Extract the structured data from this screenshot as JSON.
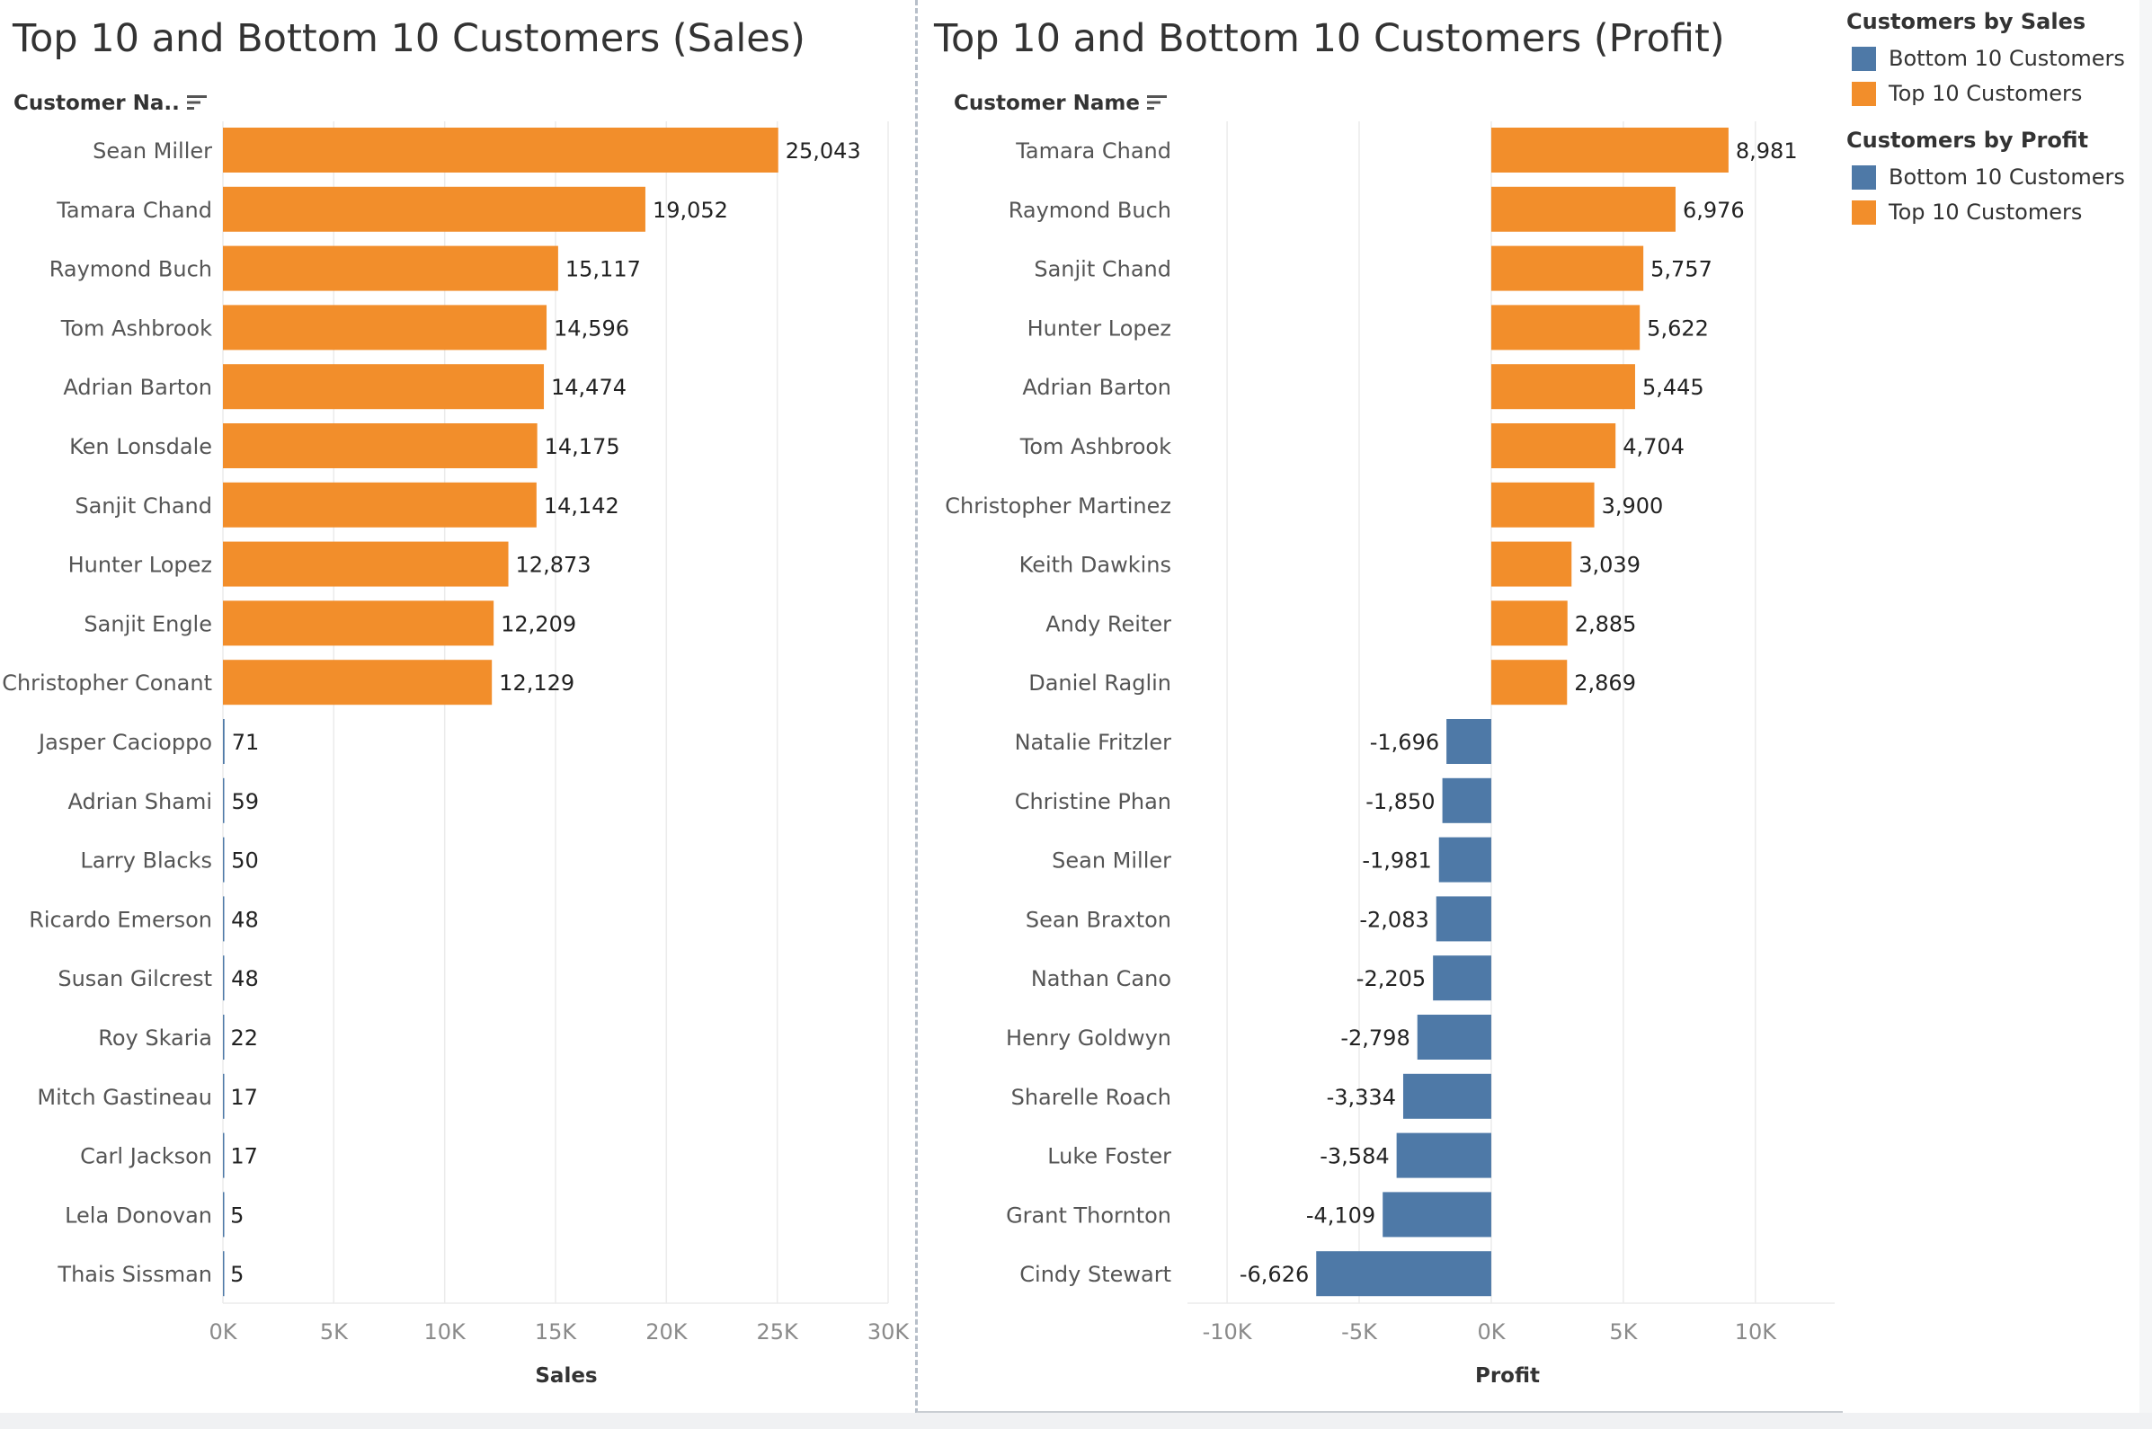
{
  "colors": {
    "orange": "#F28E2B",
    "blue": "#4E79A7",
    "grid": "#ebebeb",
    "axis": "#8a8a8a",
    "label": "#555555"
  },
  "sales_sheet": {
    "title": "Top 10 and Bottom 10 Customers (Sales)",
    "row_header": "Customer Na.."
  },
  "profit_sheet": {
    "title": "Top 10 and Bottom 10 Customers (Profit)",
    "row_header": "Customer Name"
  },
  "legend": {
    "groups": [
      {
        "title": "Customers by Sales",
        "items": [
          {
            "label": "Bottom 10 Customers",
            "color": "#4E79A7"
          },
          {
            "label": "Top 10 Customers",
            "color": "#F28E2B"
          }
        ]
      },
      {
        "title": "Customers by Profit",
        "items": [
          {
            "label": "Bottom 10 Customers",
            "color": "#4E79A7"
          },
          {
            "label": "Top 10 Customers",
            "color": "#F28E2B"
          }
        ]
      }
    ]
  },
  "chart_data": [
    {
      "type": "bar",
      "orientation": "horizontal",
      "title": "Top 10 and Bottom 10 Customers (Sales)",
      "xlabel": "Sales",
      "ylabel": "Customer Na..",
      "xlim": [
        0,
        30000
      ],
      "ticks": [
        0,
        5000,
        10000,
        15000,
        20000,
        25000,
        30000
      ],
      "tick_labels": [
        "0K",
        "5K",
        "10K",
        "15K",
        "20K",
        "25K",
        "30K"
      ],
      "grid": true,
      "categories": [
        "Sean Miller",
        "Tamara Chand",
        "Raymond Buch",
        "Tom Ashbrook",
        "Adrian Barton",
        "Ken Lonsdale",
        "Sanjit Chand",
        "Hunter Lopez",
        "Sanjit Engle",
        "Christopher Conant",
        "Jasper Cacioppo",
        "Adrian Shami",
        "Larry Blacks",
        "Ricardo Emerson",
        "Susan Gilcrest",
        "Roy Skaria",
        "Mitch Gastineau",
        "Carl Jackson",
        "Lela Donovan",
        "Thais Sissman"
      ],
      "values": [
        25043,
        19052,
        15117,
        14596,
        14474,
        14175,
        14142,
        12873,
        12209,
        12129,
        71,
        59,
        50,
        48,
        48,
        22,
        17,
        17,
        5,
        5
      ],
      "value_labels": [
        "25,043",
        "19,052",
        "15,117",
        "14,596",
        "14,474",
        "14,175",
        "14,142",
        "12,873",
        "12,209",
        "12,129",
        "71",
        "59",
        "50",
        "48",
        "48",
        "22",
        "17",
        "17",
        "5",
        "5"
      ],
      "groups": [
        "Top 10 Customers",
        "Top 10 Customers",
        "Top 10 Customers",
        "Top 10 Customers",
        "Top 10 Customers",
        "Top 10 Customers",
        "Top 10 Customers",
        "Top 10 Customers",
        "Top 10 Customers",
        "Top 10 Customers",
        "Bottom 10 Customers",
        "Bottom 10 Customers",
        "Bottom 10 Customers",
        "Bottom 10 Customers",
        "Bottom 10 Customers",
        "Bottom 10 Customers",
        "Bottom 10 Customers",
        "Bottom 10 Customers",
        "Bottom 10 Customers",
        "Bottom 10 Customers"
      ]
    },
    {
      "type": "bar",
      "orientation": "horizontal",
      "title": "Top 10 and Bottom 10 Customers (Profit)",
      "xlabel": "Profit",
      "ylabel": "Customer Name",
      "xlim": [
        -11500,
        13000
      ],
      "ticks": [
        -10000,
        -5000,
        0,
        5000,
        10000
      ],
      "tick_labels": [
        "-10K",
        "-5K",
        "0K",
        "5K",
        "10K"
      ],
      "grid": true,
      "categories": [
        "Tamara Chand",
        "Raymond Buch",
        "Sanjit Chand",
        "Hunter Lopez",
        "Adrian Barton",
        "Tom Ashbrook",
        "Christopher Martinez",
        "Keith Dawkins",
        "Andy Reiter",
        "Daniel Raglin",
        "Natalie Fritzler",
        "Christine Phan",
        "Sean Miller",
        "Sean Braxton",
        "Nathan Cano",
        "Henry Goldwyn",
        "Sharelle Roach",
        "Luke Foster",
        "Grant Thornton",
        "Cindy Stewart"
      ],
      "values": [
        8981,
        6976,
        5757,
        5622,
        5445,
        4704,
        3900,
        3039,
        2885,
        2869,
        -1696,
        -1850,
        -1981,
        -2083,
        -2205,
        -2798,
        -3334,
        -3584,
        -4109,
        -6626
      ],
      "value_labels": [
        "8,981",
        "6,976",
        "5,757",
        "5,622",
        "5,445",
        "4,704",
        "3,900",
        "3,039",
        "2,885",
        "2,869",
        "-1,696",
        "-1,850",
        "-1,981",
        "-2,083",
        "-2,205",
        "-2,798",
        "-3,334",
        "-3,584",
        "-4,109",
        "-6,626"
      ],
      "groups": [
        "Top 10 Customers",
        "Top 10 Customers",
        "Top 10 Customers",
        "Top 10 Customers",
        "Top 10 Customers",
        "Top 10 Customers",
        "Top 10 Customers",
        "Top 10 Customers",
        "Top 10 Customers",
        "Top 10 Customers",
        "Bottom 10 Customers",
        "Bottom 10 Customers",
        "Bottom 10 Customers",
        "Bottom 10 Customers",
        "Bottom 10 Customers",
        "Bottom 10 Customers",
        "Bottom 10 Customers",
        "Bottom 10 Customers",
        "Bottom 10 Customers",
        "Bottom 10 Customers"
      ]
    }
  ]
}
